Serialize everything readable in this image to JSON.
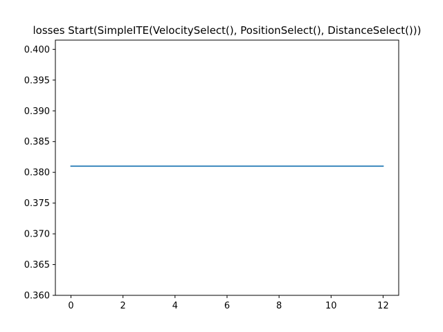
{
  "chart_data": {
    "type": "line",
    "title": "losses Start(SimpleITE(VelocitySelect(), PositionSelect(), DistanceSelect()))",
    "xlabel": "",
    "ylabel": "",
    "xlim": [
      -0.6,
      12.6
    ],
    "ylim": [
      0.36,
      0.4015
    ],
    "x_ticks": [
      0,
      2,
      4,
      6,
      8,
      10,
      12
    ],
    "x_tick_labels": [
      "0",
      "2",
      "4",
      "6",
      "8",
      "10",
      "12"
    ],
    "y_ticks": [
      0.36,
      0.365,
      0.37,
      0.375,
      0.38,
      0.385,
      0.39,
      0.395,
      0.4
    ],
    "y_tick_labels": [
      "0.360",
      "0.365",
      "0.370",
      "0.375",
      "0.380",
      "0.385",
      "0.390",
      "0.395",
      "0.400"
    ],
    "grid": false,
    "series": [
      {
        "color": "#1f77b4",
        "x": [
          0,
          1,
          2,
          3,
          4,
          5,
          6,
          7,
          8,
          9,
          10,
          11,
          12
        ],
        "y": [
          0.381,
          0.381,
          0.381,
          0.381,
          0.381,
          0.381,
          0.381,
          0.381,
          0.381,
          0.381,
          0.381,
          0.381,
          0.381
        ]
      }
    ]
  }
}
